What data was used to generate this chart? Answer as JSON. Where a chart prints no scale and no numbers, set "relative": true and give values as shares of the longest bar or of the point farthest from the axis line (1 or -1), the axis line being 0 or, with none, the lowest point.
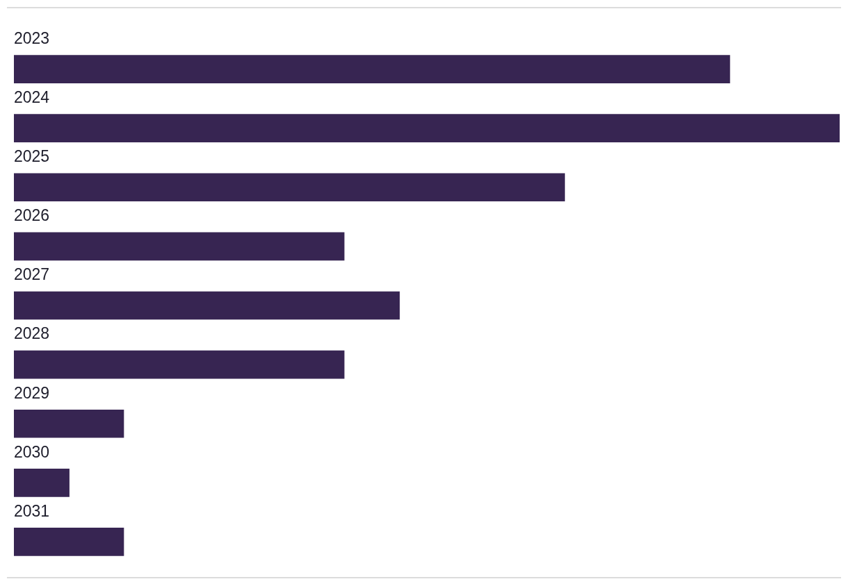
{
  "chart_data": {
    "type": "bar",
    "orientation": "horizontal",
    "relative": true,
    "categories": [
      "2023",
      "2024",
      "2025",
      "2026",
      "2027",
      "2028",
      "2029",
      "2030",
      "2031"
    ],
    "values": [
      0.867,
      1,
      0.667,
      0.4,
      0.467,
      0.4,
      0.133,
      0.067,
      0.133
    ],
    "color": "#372552",
    "legend": false
  }
}
